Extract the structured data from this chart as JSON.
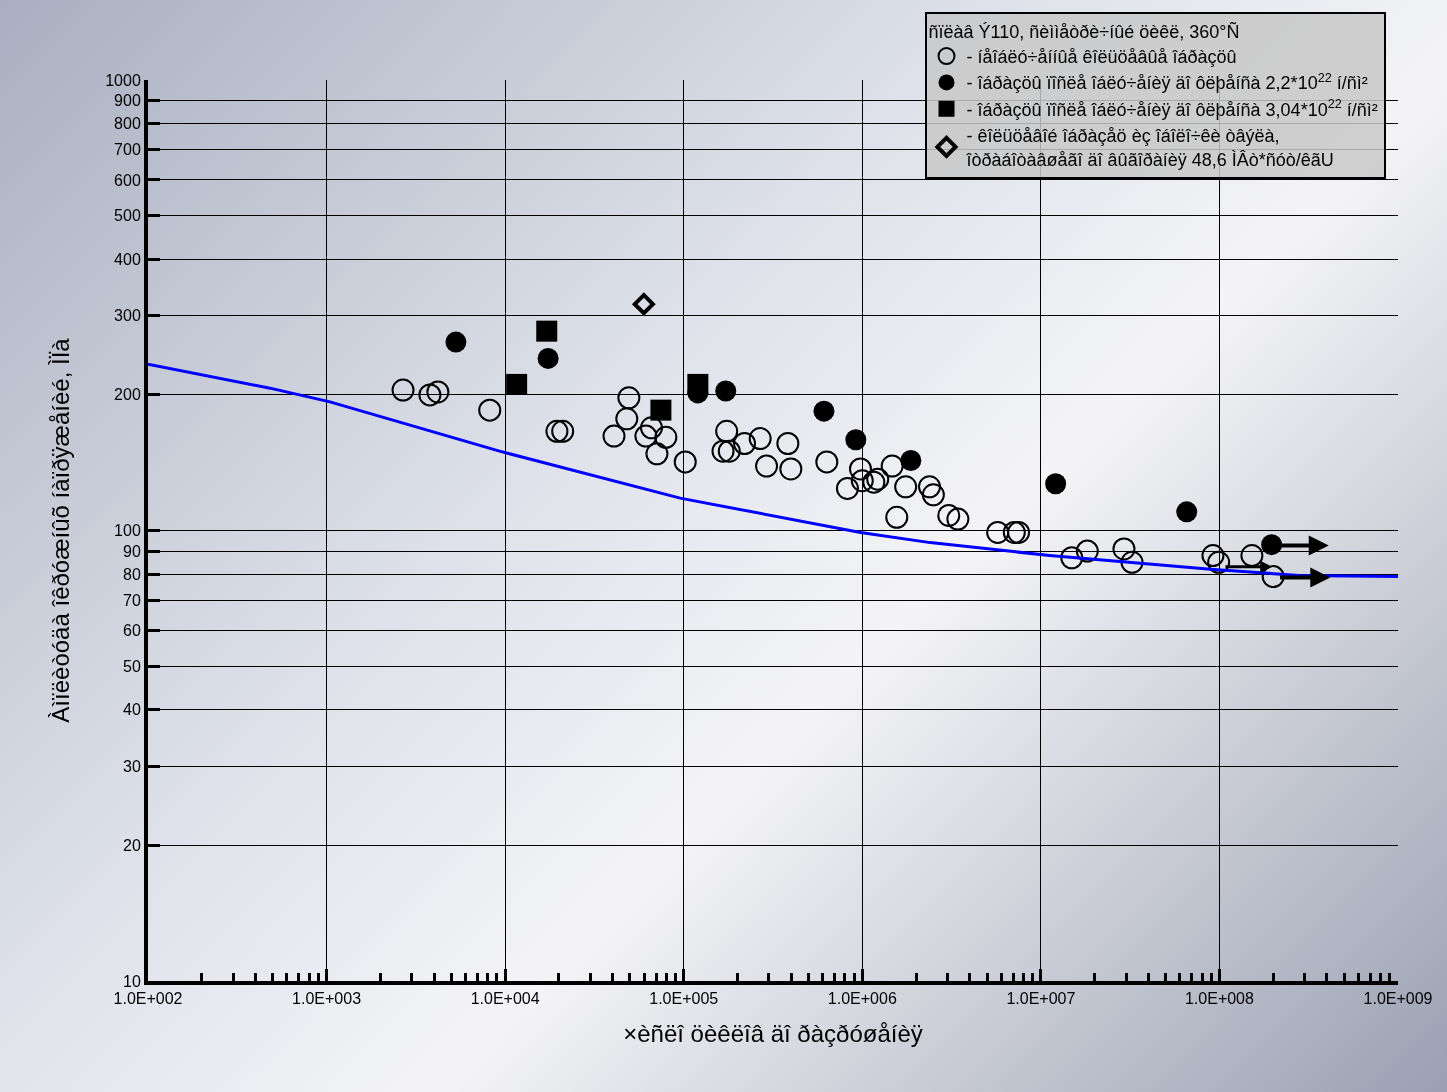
{
  "chart_data": {
    "type": "scatter",
    "xlabel": "×èñëî öèêëîâ äî ðàçðóøåíèÿ",
    "ylabel": "Àìïëèòóäà îêðóæíûõ íàïðÿæåíèé, ÌÏà",
    "legend_title": "ñïëàâ Ý110, ñèììåòðè÷íûé öèêë, 360°Ñ",
    "log": "xy",
    "grid": true,
    "legend": "top right",
    "xlim": [
      100,
      1000000000
    ],
    "ylim": [
      10,
      1000
    ],
    "xticks": [
      {
        "value": 100,
        "label": "1.0E+002"
      },
      {
        "value": 1000,
        "label": "1.0E+003"
      },
      {
        "value": 10000,
        "label": "1.0E+004"
      },
      {
        "value": 100000,
        "label": "1.0E+005"
      },
      {
        "value": 1000000,
        "label": "1.0E+006"
      },
      {
        "value": 10000000,
        "label": "1.0E+007"
      },
      {
        "value": 100000000,
        "label": "1.0E+008"
      },
      {
        "value": 1000000000,
        "label": "1.0E+009"
      }
    ],
    "yticks": [
      10,
      20,
      30,
      40,
      50,
      60,
      70,
      80,
      90,
      100,
      200,
      300,
      400,
      500,
      600,
      700,
      800,
      900,
      1000
    ],
    "series": [
      {
        "name": "- íåîáëó÷åííûå êîëüöåâûå îáðàçöû",
        "color": "#000000",
        "marker": "circle",
        "x": [
          2680,
          3790,
          4200,
          8200,
          19500,
          21000,
          49300,
          48000,
          40700,
          61400,
          66000,
          79400,
          70800,
          102000,
          174000,
          166000,
          180000,
          219000,
          268000,
          291000,
          383000,
          398000,
          633000,
          826000,
          977000,
          1000000,
          1160000,
          1220000,
          1470000,
          1560000,
          1750000,
          2380000,
          2500000,
          3050000,
          3430000,
          5730000,
          7100000,
          7500000,
          14900000,
          18200000,
          29200000,
          32400000,
          92000000,
          99000000,
          152000000,
          200000000
        ],
        "values": [
          205,
          200,
          203,
          185,
          166,
          166,
          197,
          177,
          162,
          162,
          169,
          161,
          148,
          142,
          166,
          150,
          150,
          156,
          160,
          139,
          156,
          137,
          142,
          124,
          137,
          129,
          128,
          130,
          139,
          107,
          125,
          125,
          120,
          108,
          106,
          99,
          99,
          99,
          87,
          90,
          91,
          85,
          88,
          85,
          88,
          79
        ]
      },
      {
        "name": "- îáðàçöû ïîñëå îáëó÷åíèÿ äî ôëþåíñà 2,2*10$^{22}$ í/ñì²",
        "color": "#000000",
        "marker": "circle",
        "x": [
          5300,
          17400,
          120000,
          172000,
          610000,
          920000,
          1870000,
          12100000,
          65600000,
          196000000
        ],
        "values": [
          262,
          241,
          202,
          204,
          184,
          159,
          143,
          127,
          110,
          93
        ]
      },
      {
        "name": "- îáðàçöû ïîñëå îáëó÷åíèÿ äî ôëþåíñà 3,04*10$^{22}$ í/ñì²",
        "color": "#000000",
        "marker": "square",
        "x": [
          17100,
          11600,
          74500,
          120000
        ],
        "values": [
          277,
          211,
          185,
          211
        ]
      },
      {
        "name": "- êîëüöåâîé îáðàçåö èç îáîëî÷êè òâýëà,\nîòðàáîòàâøåãî äî âûãîðàíèÿ 48,6 ÌÂò*ñóò/êãU",
        "color": "#000000",
        "marker": "diamond",
        "x": [
          59800
        ],
        "values": [
          318
        ]
      },
      {
        "type": "line",
        "color": "#0000ff",
        "marker": "none",
        "line_style": "solid",
        "x": [
          100,
          482,
          1045,
          9300,
          95500,
          977000,
          2400000,
          11200000,
          89000000,
          280000000,
          1000000000
        ],
        "values": [
          234,
          207,
          193,
          150,
          118,
          99,
          94,
          88,
          82,
          79.5,
          79
        ]
      }
    ]
  }
}
